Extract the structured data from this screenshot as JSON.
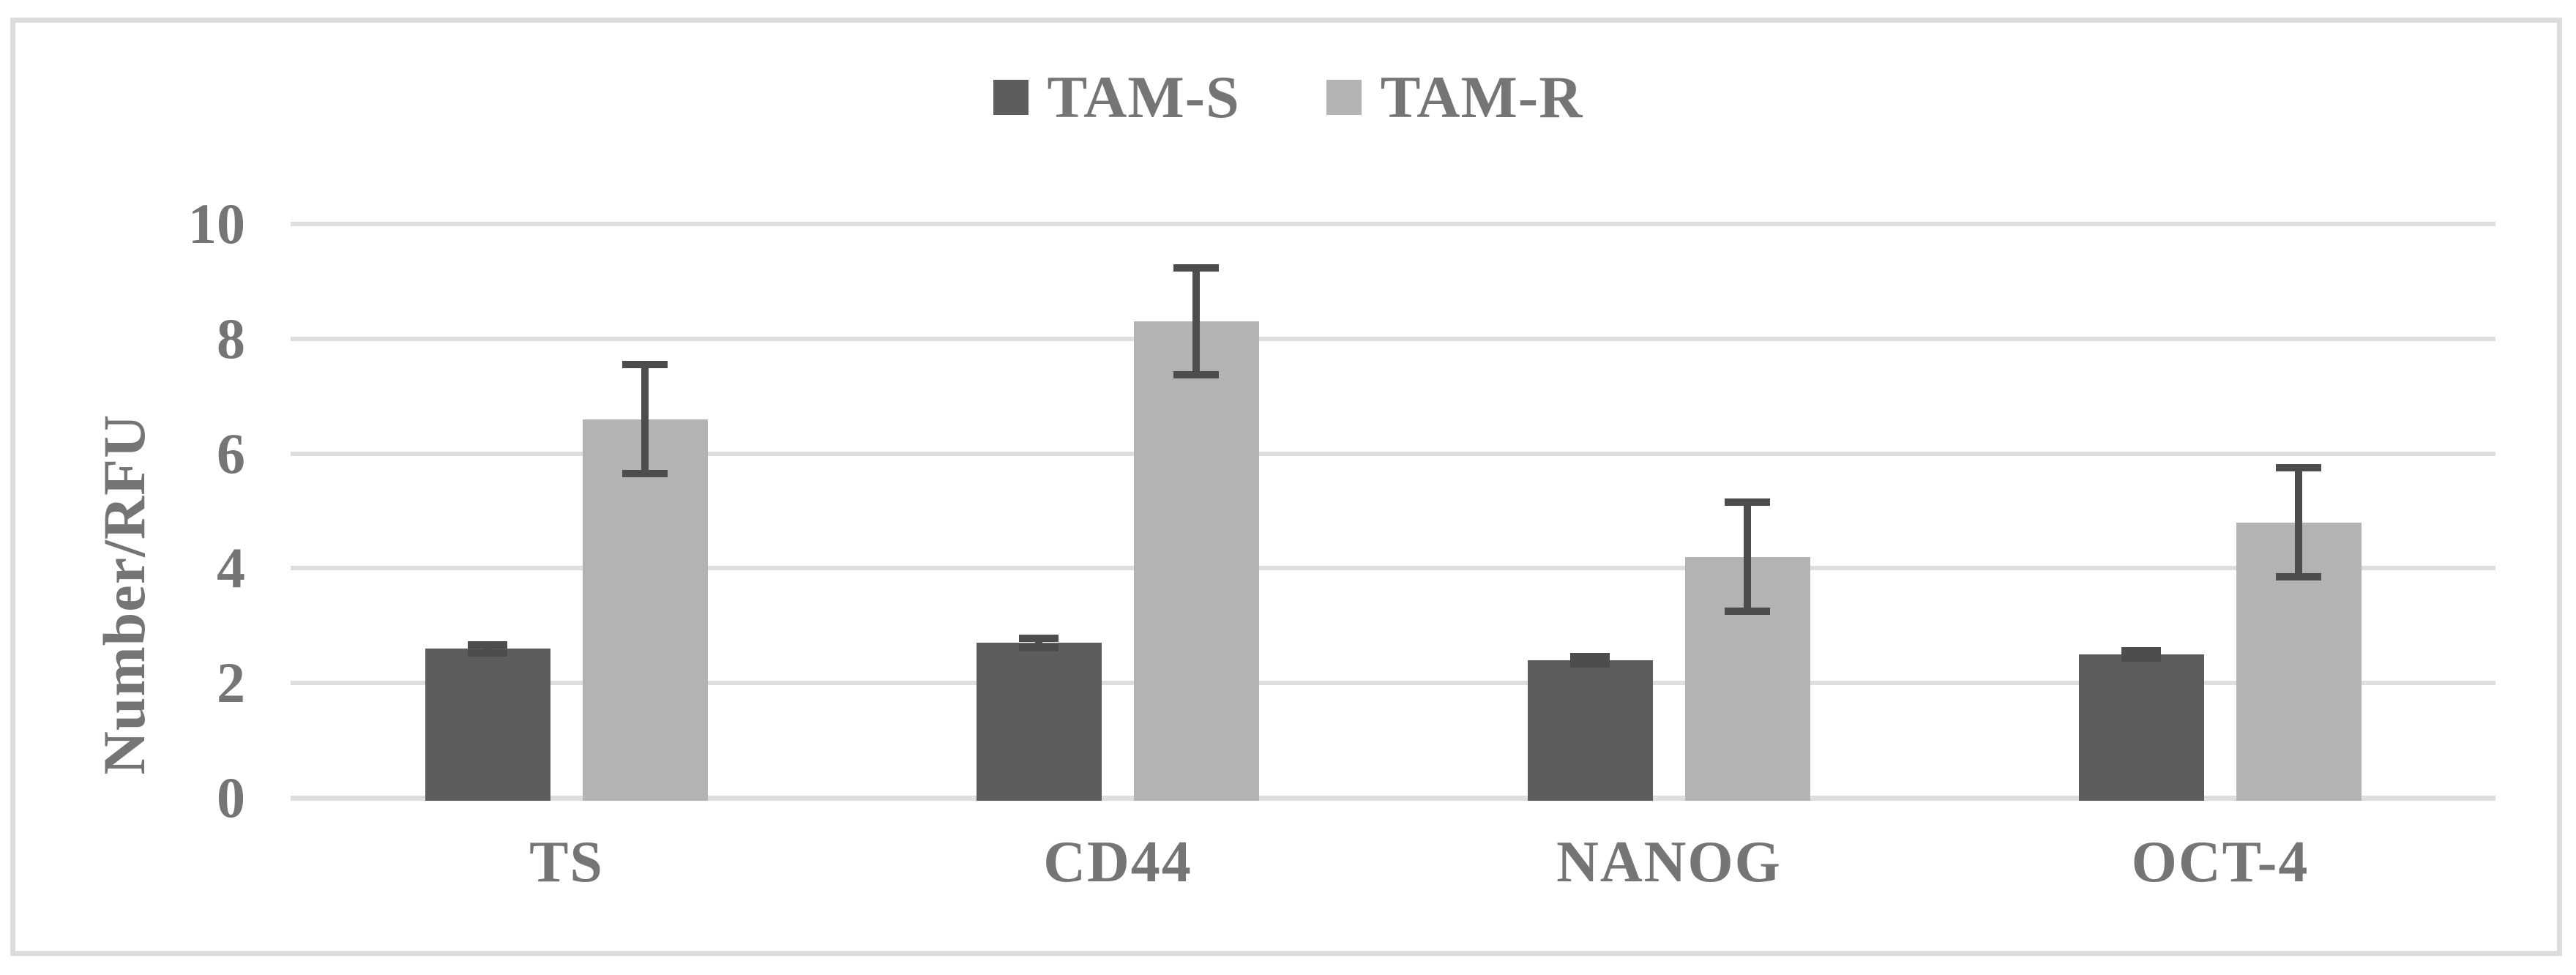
{
  "figure": {
    "type": "grouped-bar-chart-with-error-bars"
  },
  "colors": {
    "tam_s": "#5d5d5d",
    "tam_r": "#b3b3b3",
    "error_bar": "#4d4d4d",
    "gridline": "#dedede",
    "frame_border": "#dcdcdc",
    "text": "#757575",
    "background": "#ffffff"
  },
  "chart_data": {
    "type": "bar",
    "title": "",
    "xlabel": "",
    "ylabel": "Number/RFU",
    "ylim": [
      0,
      10
    ],
    "yticks": [
      0,
      2,
      4,
      6,
      8,
      10
    ],
    "grid": true,
    "legend_position": "top-center",
    "categories": [
      "TS",
      "CD44",
      "NANOG",
      "OCT-4"
    ],
    "series": [
      {
        "name": "TAM-S",
        "color": "#5d5d5d",
        "values": [
          2.6,
          2.7,
          2.4,
          2.5
        ],
        "errors": [
          0.07,
          0.08,
          0.06,
          0.07
        ]
      },
      {
        "name": "TAM-R",
        "color": "#b3b3b3",
        "values": [
          6.6,
          8.3,
          4.2,
          4.8
        ],
        "errors": [
          0.95,
          0.93,
          0.95,
          0.95
        ]
      }
    ]
  }
}
